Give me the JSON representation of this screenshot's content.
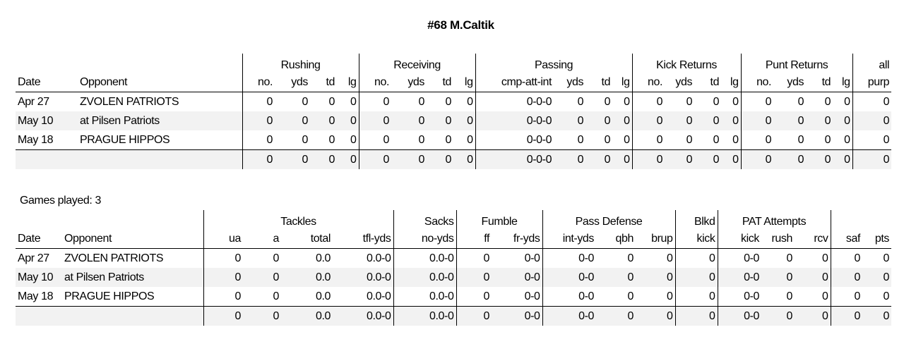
{
  "title": "#68 M.Caltik",
  "offense": {
    "groups": [
      "Rushing",
      "Receiving",
      "Passing",
      "Kick Returns",
      "Punt Returns",
      "all"
    ],
    "columns": [
      "Date",
      "Opponent",
      "no.",
      "yds",
      "td",
      "lg",
      "no.",
      "yds",
      "td",
      "lg",
      "cmp-att-int",
      "yds",
      "td",
      "lg",
      "no.",
      "yds",
      "td",
      "lg",
      "no.",
      "yds",
      "td",
      "lg",
      "purp"
    ],
    "rows": [
      [
        "Apr 27",
        "ZVOLEN PATRIOTS",
        "0",
        "0",
        "0",
        "0",
        "0",
        "0",
        "0",
        "0",
        "0-0-0",
        "0",
        "0",
        "0",
        "0",
        "0",
        "0",
        "0",
        "0",
        "0",
        "0",
        "0",
        "0"
      ],
      [
        "May 10",
        "at Pilsen Patriots",
        "0",
        "0",
        "0",
        "0",
        "0",
        "0",
        "0",
        "0",
        "0-0-0",
        "0",
        "0",
        "0",
        "0",
        "0",
        "0",
        "0",
        "0",
        "0",
        "0",
        "0",
        "0"
      ],
      [
        "May 18",
        "PRAGUE HIPPOS",
        "0",
        "0",
        "0",
        "0",
        "0",
        "0",
        "0",
        "0",
        "0-0-0",
        "0",
        "0",
        "0",
        "0",
        "0",
        "0",
        "0",
        "0",
        "0",
        "0",
        "0",
        "0"
      ]
    ],
    "totals": [
      "",
      "",
      "0",
      "0",
      "0",
      "0",
      "0",
      "0",
      "0",
      "0",
      "0-0-0",
      "0",
      "0",
      "0",
      "0",
      "0",
      "0",
      "0",
      "0",
      "0",
      "0",
      "0",
      "0"
    ]
  },
  "games_played": "Games played: 3",
  "defense": {
    "groups": [
      "Tackles",
      "Sacks",
      "Fumble",
      "Pass Defense",
      "Blkd",
      "PAT Attempts"
    ],
    "columns": [
      "Date",
      "Opponent",
      "ua",
      "a",
      "total",
      "tfl-yds",
      "no-yds",
      "ff",
      "fr-yds",
      "int-yds",
      "qbh",
      "brup",
      "kick",
      "kick",
      "rush",
      "rcv",
      "saf",
      "pts"
    ],
    "rows": [
      [
        "Apr 27",
        "ZVOLEN PATRIOTS",
        "0",
        "0",
        "0.0",
        "0.0-0",
        "0.0-0",
        "0",
        "0-0",
        "0-0",
        "0",
        "0",
        "0",
        "0-0",
        "0",
        "0",
        "0",
        "0"
      ],
      [
        "May 10",
        "at Pilsen Patriots",
        "0",
        "0",
        "0.0",
        "0.0-0",
        "0.0-0",
        "0",
        "0-0",
        "0-0",
        "0",
        "0",
        "0",
        "0-0",
        "0",
        "0",
        "0",
        "0"
      ],
      [
        "May 18",
        "PRAGUE HIPPOS",
        "0",
        "0",
        "0.0",
        "0.0-0",
        "0.0-0",
        "0",
        "0-0",
        "0-0",
        "0",
        "0",
        "0",
        "0-0",
        "0",
        "0",
        "0",
        "0"
      ]
    ],
    "totals": [
      "",
      "",
      "0",
      "0",
      "0.0",
      "0.0-0",
      "0.0-0",
      "0",
      "0-0",
      "0-0",
      "0",
      "0",
      "0",
      "0-0",
      "0",
      "0",
      "0",
      "0"
    ]
  }
}
